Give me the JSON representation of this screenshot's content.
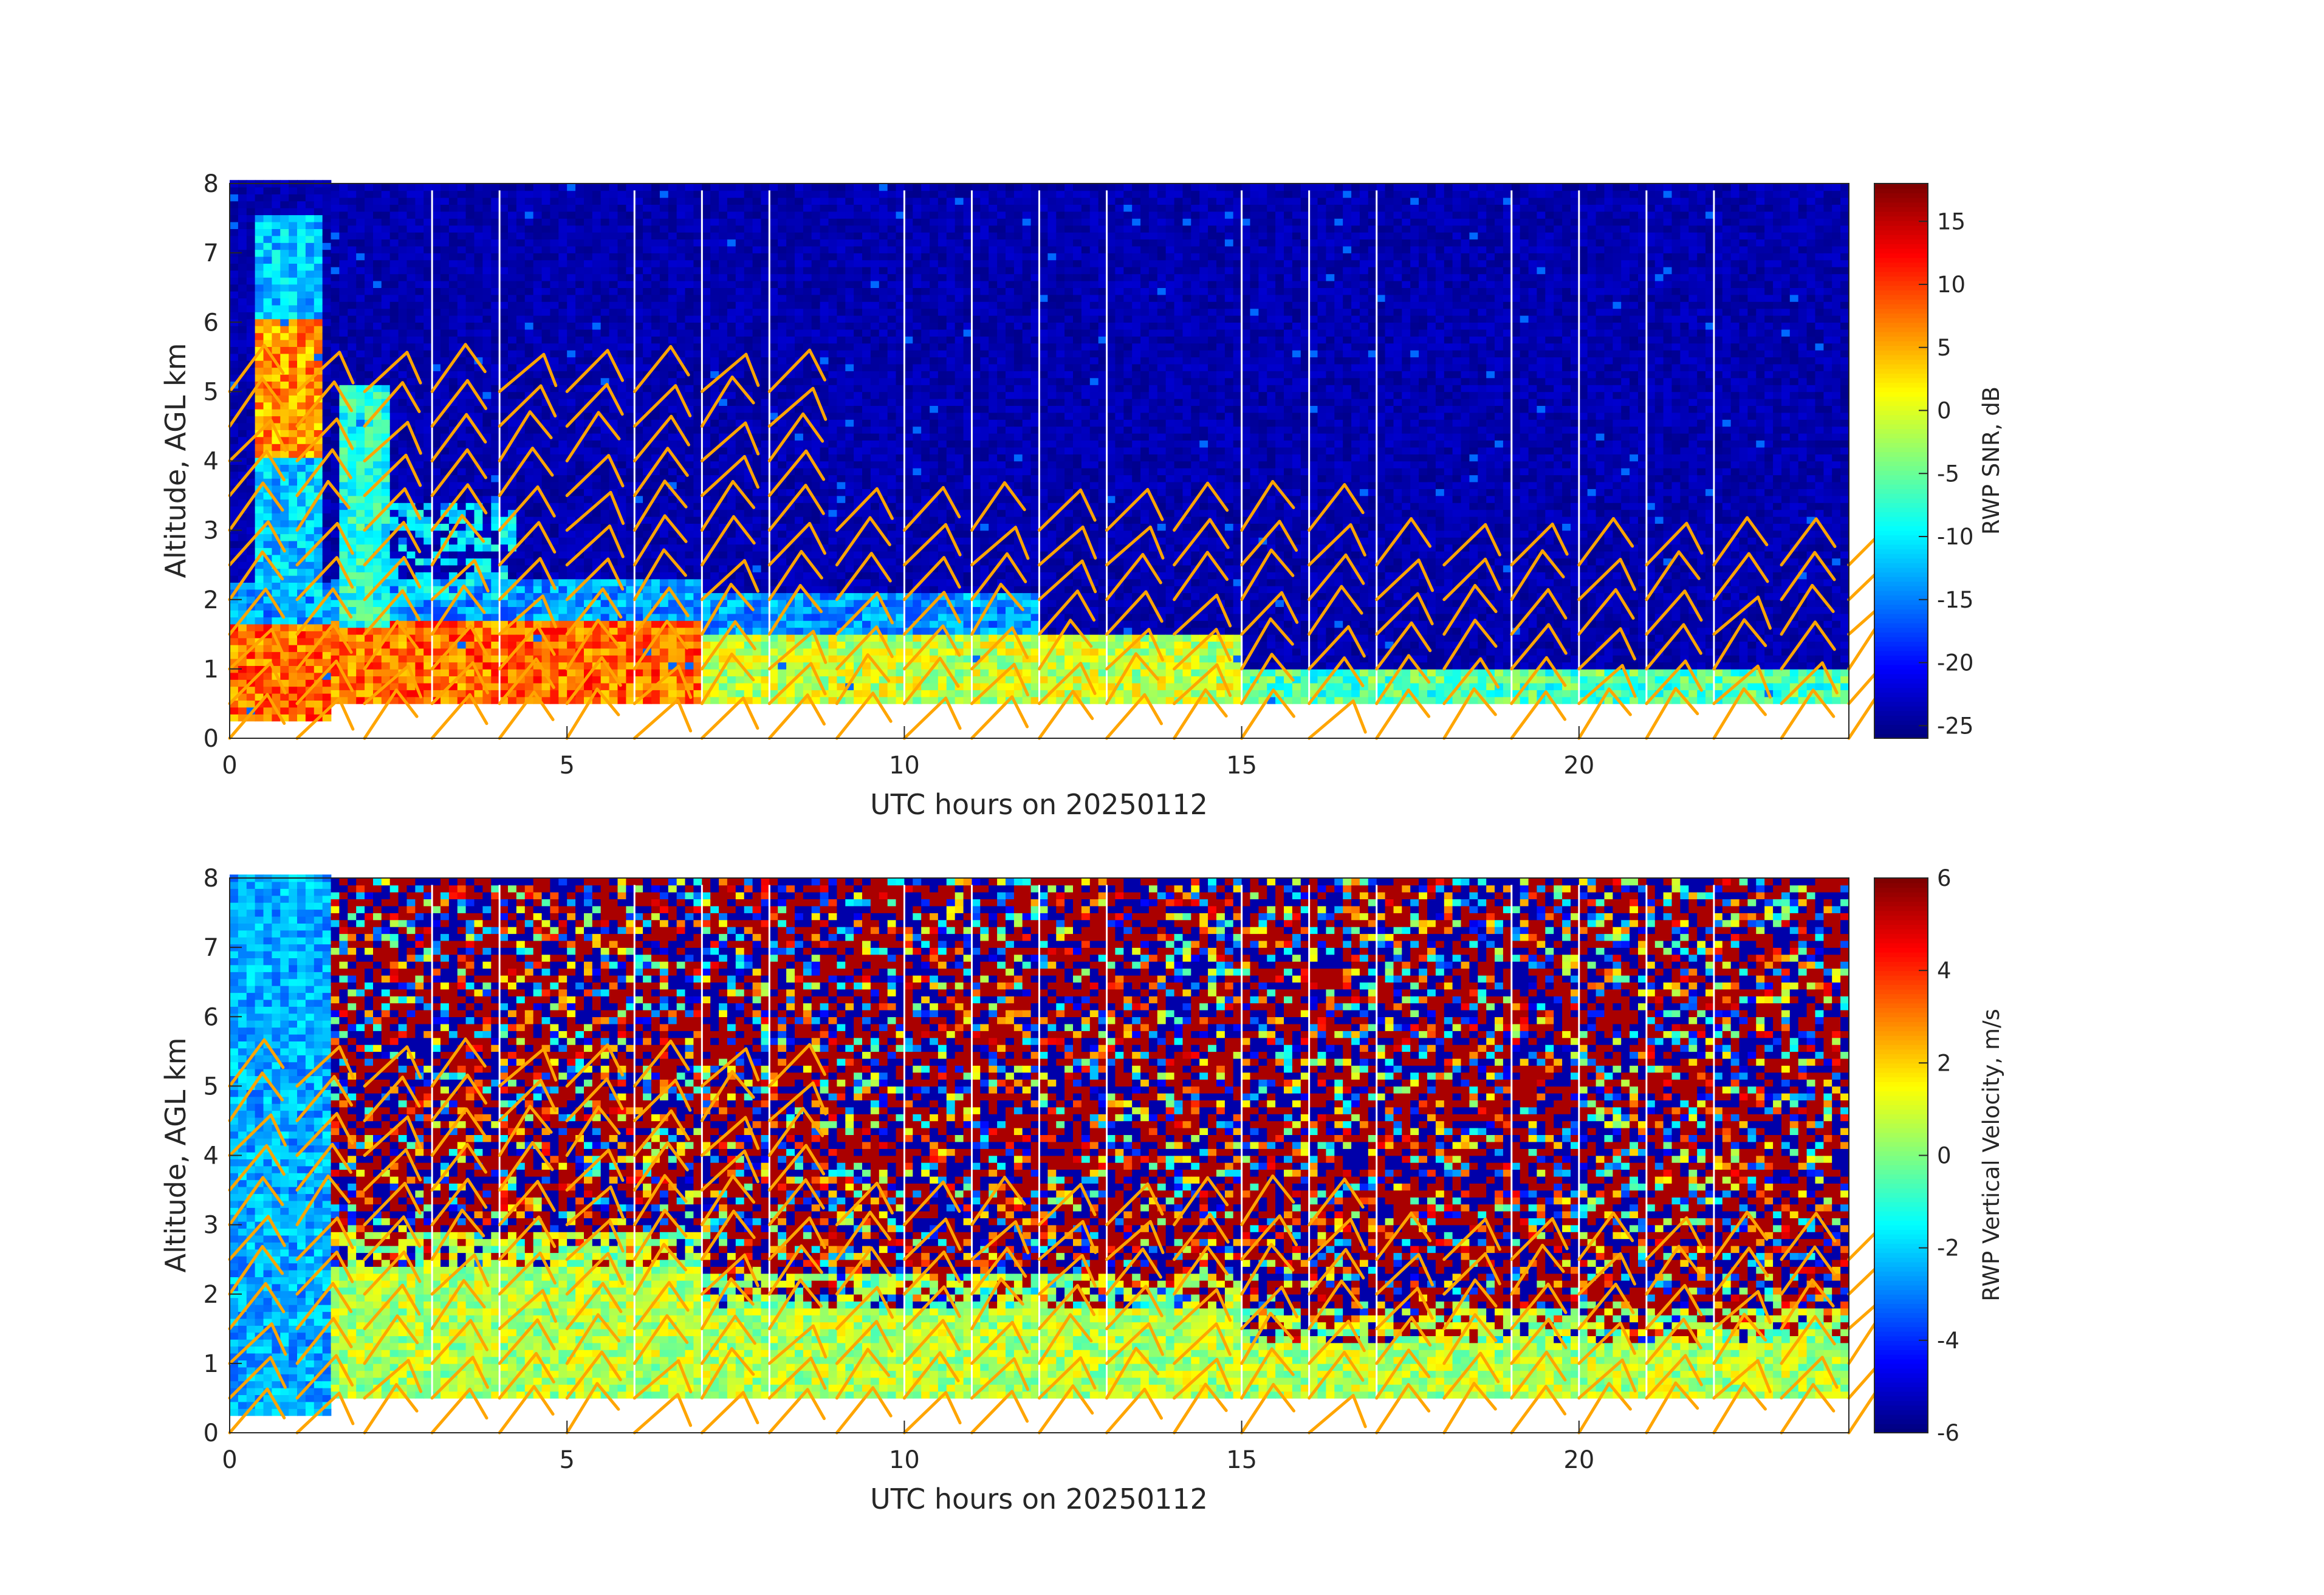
{
  "chart_data": [
    {
      "type": "heatmap",
      "title": "",
      "xlabel": "UTC hours on 20250112",
      "ylabel": "Altitude, AGL km",
      "xlim": [
        0,
        24
      ],
      "ylim": [
        0,
        8
      ],
      "xticks": [
        0,
        5,
        10,
        15,
        20
      ],
      "yticks": [
        0,
        1,
        2,
        3,
        4,
        5,
        6,
        7,
        8
      ],
      "colorbar": {
        "label": "RWP SNR, dB",
        "range": [
          -26,
          18
        ],
        "ticks": [
          15,
          10,
          5,
          0,
          -5,
          -10,
          -15,
          -20,
          -25
        ],
        "colormap": "jet"
      },
      "data_gaps_hours": [
        3.0,
        4.0,
        6.0,
        7.0,
        8.0,
        10.0,
        11.0,
        12.0,
        13.0,
        15.0,
        16.0,
        17.0,
        19.0,
        20.0,
        21.0,
        22.0
      ],
      "features": {
        "strong_layer_km": [
          0.9,
          1.6
        ],
        "strong_layer_hours": [
          0,
          7
        ],
        "high_echo_hours": [
          0.3,
          1.3
        ],
        "high_echo_km": [
          4.0,
          6.0
        ],
        "background_db": -24
      },
      "wind_barb_color": "#FFA500"
    },
    {
      "type": "heatmap",
      "title": "",
      "xlabel": "UTC hours on 20250112",
      "ylabel": "Altitude, AGL km",
      "xlim": [
        0,
        24
      ],
      "ylim": [
        0,
        8
      ],
      "xticks": [
        0,
        5,
        10,
        15,
        20
      ],
      "yticks": [
        0,
        1,
        2,
        3,
        4,
        5,
        6,
        7,
        8
      ],
      "colorbar": {
        "label": "RWP Vertical Velocity, m/s",
        "range": [
          -6,
          6
        ],
        "ticks": [
          6,
          4,
          2,
          0,
          -2,
          -4,
          -6
        ],
        "colormap": "jet"
      },
      "data_gaps_hours": [
        3.0,
        4.0,
        6.0,
        7.0,
        8.0,
        10.0,
        11.0,
        12.0,
        13.0,
        15.0,
        16.0,
        17.0,
        19.0,
        20.0,
        21.0,
        22.0
      ],
      "features": {
        "coherent_layer_km": [
          0.5,
          1.8
        ],
        "coherent_velocity_ms": 0.5,
        "noise_above_km": 2.0,
        "early_downdraft_ms": -2.5
      },
      "wind_barb_color": "#FFA500"
    }
  ],
  "wind_barbs": {
    "times_hours": [
      0,
      1,
      2,
      3,
      4,
      5,
      6,
      7,
      8,
      9,
      10,
      11,
      12,
      13,
      14,
      15,
      16,
      17,
      18,
      19,
      20,
      21,
      22,
      23,
      24
    ],
    "heights_km": [
      0.0,
      0.5,
      1.0,
      1.5,
      2.0,
      2.5,
      3.0,
      3.5,
      4.0,
      4.5,
      5.0
    ]
  }
}
